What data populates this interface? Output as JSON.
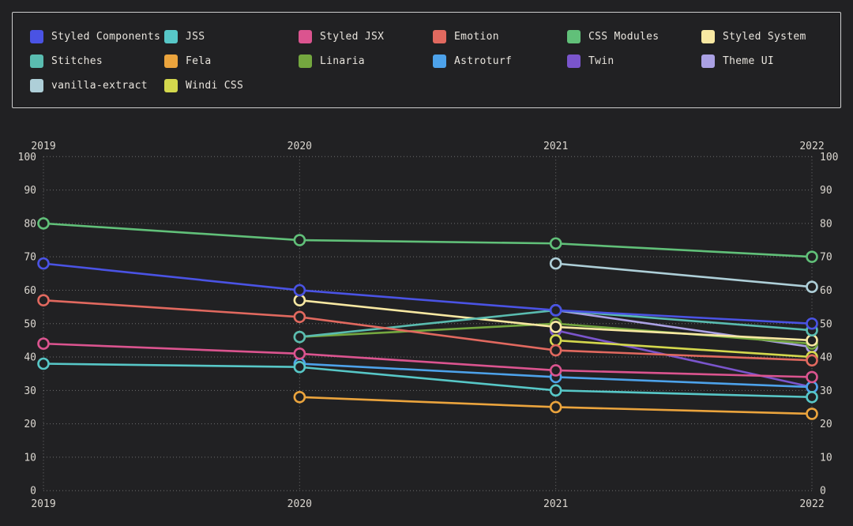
{
  "colors": {
    "background": "#212123",
    "grid": "#8d8d8d",
    "text": "#dbd7d0",
    "legend_border": "#cdcdcd"
  },
  "chart_data": {
    "type": "line",
    "title": "",
    "xlabel": "",
    "ylabel": "",
    "x": [
      2019,
      2020,
      2021,
      2022
    ],
    "ylim": [
      0,
      100
    ],
    "y_ticks": [
      0,
      10,
      20,
      30,
      40,
      50,
      60,
      70,
      80,
      90,
      100
    ],
    "grid": true,
    "legend_position": "top",
    "axis_labels_mirrored": true,
    "series": [
      {
        "name": "Styled Components",
        "color": "#4a53e4",
        "values": [
          68,
          60,
          54,
          50
        ]
      },
      {
        "name": "JSS",
        "color": "#57c7c7",
        "values": [
          38,
          37,
          30,
          28
        ]
      },
      {
        "name": "Styled JSX",
        "color": "#db548f",
        "values": [
          44,
          41,
          36,
          34
        ]
      },
      {
        "name": "Emotion",
        "color": "#e1695f",
        "values": [
          57,
          52,
          42,
          39
        ]
      },
      {
        "name": "CSS Modules",
        "color": "#61c079",
        "values": [
          80,
          75,
          74,
          70
        ]
      },
      {
        "name": "Styled System",
        "color": "#f8e8a2",
        "values": [
          null,
          57,
          49,
          45
        ]
      },
      {
        "name": "Stitches",
        "color": "#5abcb0",
        "values": [
          null,
          46,
          54,
          48
        ]
      },
      {
        "name": "Fela",
        "color": "#eba43d",
        "values": [
          null,
          28,
          25,
          23
        ]
      },
      {
        "name": "Linaria",
        "color": "#74a73f",
        "values": [
          null,
          46,
          50,
          44
        ]
      },
      {
        "name": "Astroturf",
        "color": "#4da2ea",
        "values": [
          null,
          38,
          34,
          31
        ]
      },
      {
        "name": "Twin",
        "color": "#7a55cc",
        "values": [
          null,
          null,
          48,
          31
        ]
      },
      {
        "name": "Theme UI",
        "color": "#aba1e4",
        "values": [
          null,
          null,
          54,
          43
        ]
      },
      {
        "name": "vanilla-extract",
        "color": "#aecfd8",
        "values": [
          null,
          null,
          68,
          61
        ]
      },
      {
        "name": "Windi CSS",
        "color": "#d4d84d",
        "values": [
          null,
          null,
          45,
          40
        ]
      }
    ],
    "draw_order": [
      "Twin",
      "Theme UI",
      "Linaria",
      "Windi CSS",
      "Styled System",
      "Fela",
      "Astroturf",
      "Stitches",
      "JSS",
      "vanilla-extract",
      "Emotion",
      "Styled JSX",
      "CSS Modules",
      "Styled Components"
    ]
  }
}
